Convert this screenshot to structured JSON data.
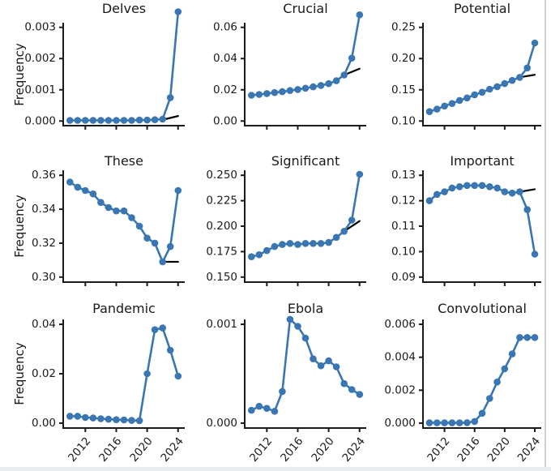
{
  "chart_data": {
    "type": "line",
    "description": "3x3 grid of word-frequency time series, 2010-2024, blue markers+line with short black trend segment on top-row panels",
    "x": [
      2010,
      2011,
      2012,
      2013,
      2014,
      2015,
      2016,
      2017,
      2018,
      2019,
      2020,
      2021,
      2022,
      2023,
      2024
    ],
    "xticks": [
      2012,
      2016,
      2020,
      2024
    ],
    "xtick_labels": [
      "2012",
      "2016",
      "2020",
      "2024"
    ],
    "ylabel": "Frequency",
    "colors": {
      "line": "#3a76b1",
      "marker": "#3a76b1",
      "trend": "#000000",
      "axis": "#1b1b1b",
      "background": "#ffffff"
    },
    "legend": "none",
    "grid": false,
    "panels": [
      {
        "title": "Delves",
        "ylim": [
          0,
          0.003
        ],
        "ytick_values": [
          0,
          0.001,
          0.002,
          0.003
        ],
        "ytick_labels": [
          "0.000",
          "0.001",
          "0.002",
          "0.003"
        ],
        "values": [
          2e-05,
          2e-05,
          2e-05,
          2e-05,
          2e-05,
          2e-05,
          2e-05,
          2e-05,
          2e-05,
          3e-05,
          3e-05,
          4e-05,
          6e-05,
          0.00075,
          0.0035
        ],
        "trend": {
          "x": [
            2022,
            2024
          ],
          "y": [
            4e-05,
            0.00016
          ]
        }
      },
      {
        "title": "Crucial",
        "ylim": [
          0,
          0.06
        ],
        "ytick_values": [
          0,
          0.02,
          0.04,
          0.06
        ],
        "ytick_labels": [
          "0.00",
          "0.02",
          "0.04",
          "0.06"
        ],
        "values": [
          0.0165,
          0.017,
          0.0176,
          0.0182,
          0.0188,
          0.0195,
          0.0202,
          0.021,
          0.0219,
          0.0228,
          0.0239,
          0.0258,
          0.0295,
          0.0403,
          0.068
        ],
        "trend": {
          "x": [
            2022,
            2024
          ],
          "y": [
            0.0295,
            0.0335
          ]
        }
      },
      {
        "title": "Potential",
        "ylim": [
          0.1,
          0.25
        ],
        "ytick_values": [
          0.1,
          0.15,
          0.2,
          0.25
        ],
        "ytick_labels": [
          "0.10",
          "0.15",
          "0.20",
          "0.25"
        ],
        "values": [
          0.115,
          0.119,
          0.124,
          0.128,
          0.133,
          0.137,
          0.142,
          0.146,
          0.151,
          0.155,
          0.16,
          0.165,
          0.17,
          0.185,
          0.225
        ],
        "trend": {
          "x": [
            2022,
            2024
          ],
          "y": [
            0.17,
            0.174
          ]
        }
      },
      {
        "title": "These",
        "ylim": [
          0.3,
          0.36
        ],
        "ytick_values": [
          0.3,
          0.32,
          0.34,
          0.36
        ],
        "ytick_labels": [
          "0.30",
          "0.32",
          "0.34",
          "0.36"
        ],
        "values": [
          0.356,
          0.353,
          0.351,
          0.349,
          0.344,
          0.341,
          0.339,
          0.339,
          0.335,
          0.33,
          0.323,
          0.32,
          0.309,
          0.318,
          0.351
        ],
        "trend": {
          "x": [
            2022,
            2024
          ],
          "y": [
            0.309,
            0.309
          ]
        }
      },
      {
        "title": "Significant",
        "ylim": [
          0.15,
          0.25
        ],
        "ytick_values": [
          0.15,
          0.175,
          0.2,
          0.225,
          0.25
        ],
        "ytick_labels": [
          "0.150",
          "0.175",
          "0.200",
          "0.225",
          "0.250"
        ],
        "values": [
          0.17,
          0.172,
          0.176,
          0.18,
          0.182,
          0.183,
          0.182,
          0.183,
          0.183,
          0.183,
          0.184,
          0.189,
          0.195,
          0.206,
          0.251
        ],
        "trend": {
          "x": [
            2022,
            2024
          ],
          "y": [
            0.195,
            0.205
          ]
        }
      },
      {
        "title": "Important",
        "ylim": [
          0.09,
          0.13
        ],
        "ytick_values": [
          0.09,
          0.1,
          0.11,
          0.12,
          0.13
        ],
        "ytick_labels": [
          "0.09",
          "0.10",
          "0.11",
          "0.12",
          "0.13"
        ],
        "values": [
          0.12,
          0.1225,
          0.1235,
          0.125,
          0.1255,
          0.126,
          0.126,
          0.126,
          0.1255,
          0.125,
          0.1235,
          0.123,
          0.1235,
          0.1165,
          0.099
        ],
        "trend": {
          "x": [
            2022,
            2024
          ],
          "y": [
            0.1235,
            0.1245
          ]
        }
      },
      {
        "title": "Pandemic",
        "ylim": [
          0,
          0.04
        ],
        "ytick_values": [
          0,
          0.02,
          0.04
        ],
        "ytick_labels": [
          "0.00",
          "0.02",
          "0.04"
        ],
        "values": [
          0.0028,
          0.0028,
          0.0023,
          0.0021,
          0.0018,
          0.0016,
          0.0014,
          0.0013,
          0.0011,
          0.001,
          0.02,
          0.0378,
          0.0385,
          0.0295,
          0.019
        ],
        "trend": null
      },
      {
        "title": "Ebola",
        "ylim": [
          0,
          0.001
        ],
        "ytick_values": [
          0,
          0.001
        ],
        "ytick_labels": [
          "0.000",
          "0.001"
        ],
        "values": [
          0.00013,
          0.00017,
          0.00015,
          0.00012,
          0.00032,
          0.00105,
          0.00098,
          0.00086,
          0.00065,
          0.00058,
          0.00063,
          0.00057,
          0.0004,
          0.00034,
          0.00029
        ],
        "trend": null
      },
      {
        "title": "Convolutional",
        "ylim": [
          0,
          0.006
        ],
        "ytick_values": [
          0,
          0.002,
          0.004,
          0.006
        ],
        "ytick_labels": [
          "0.000",
          "0.002",
          "0.004",
          "0.006"
        ],
        "values": [
          2e-05,
          2e-05,
          2e-05,
          2e-05,
          2e-05,
          3e-05,
          0.0001,
          0.0006,
          0.0015,
          0.0025,
          0.0033,
          0.0042,
          0.0052,
          0.0052,
          0.0052
        ],
        "trend": null
      }
    ]
  }
}
